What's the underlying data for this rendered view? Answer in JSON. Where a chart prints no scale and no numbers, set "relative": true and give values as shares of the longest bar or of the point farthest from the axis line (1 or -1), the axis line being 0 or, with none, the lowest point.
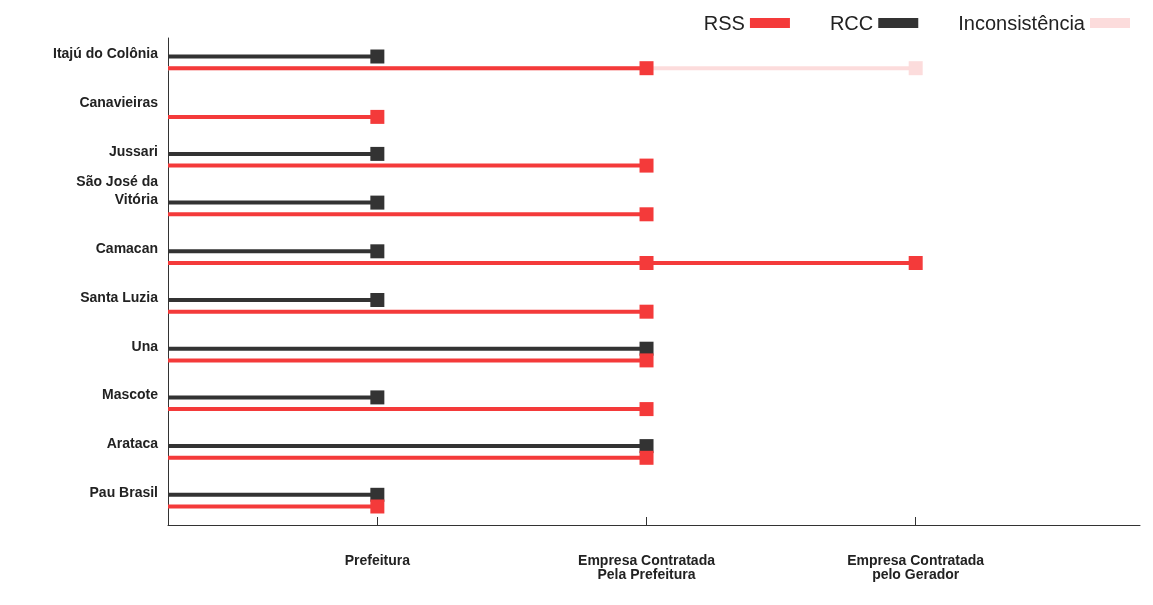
{
  "chart_data": {
    "type": "lollipop",
    "orientation": "horizontal",
    "relative": true,
    "categories": [
      "Itajú do Colônia",
      "Canavieiras",
      "Jussari",
      "São José da\nVitória",
      "Camacan",
      "Santa Luzia",
      "Una",
      "Mascote",
      "Arataca",
      "Pau Brasil"
    ],
    "series": [
      {
        "name": "RSS",
        "color": "#f43a3a",
        "values": [
          0.64,
          0.28,
          0.64,
          0.64,
          1,
          0.64,
          0.64,
          0.64,
          0.64,
          0.28
        ]
      },
      {
        "name": "RCC",
        "color": "#333333",
        "values": [
          0.28,
          null,
          0.28,
          0.28,
          0.28,
          0.28,
          0.64,
          0.28,
          0.64,
          0.28
        ]
      },
      {
        "name": "Inconsistência",
        "color": "#fcdcdc",
        "values": [
          1,
          null,
          null,
          null,
          null,
          null,
          null,
          null,
          null,
          null
        ]
      },
      {
        "type": "scatter",
        "color": "#f43a3a",
        "values": [
          null,
          null,
          null,
          null,
          0.64,
          null,
          null,
          null,
          null,
          null
        ]
      }
    ],
    "annotations": [
      "Prefeitura",
      "Empresa Contratada\nPela Prefeitura",
      "Empresa Contratada\npelo Gerador"
    ],
    "marker": "square",
    "legend": "top right",
    "grid": false
  }
}
